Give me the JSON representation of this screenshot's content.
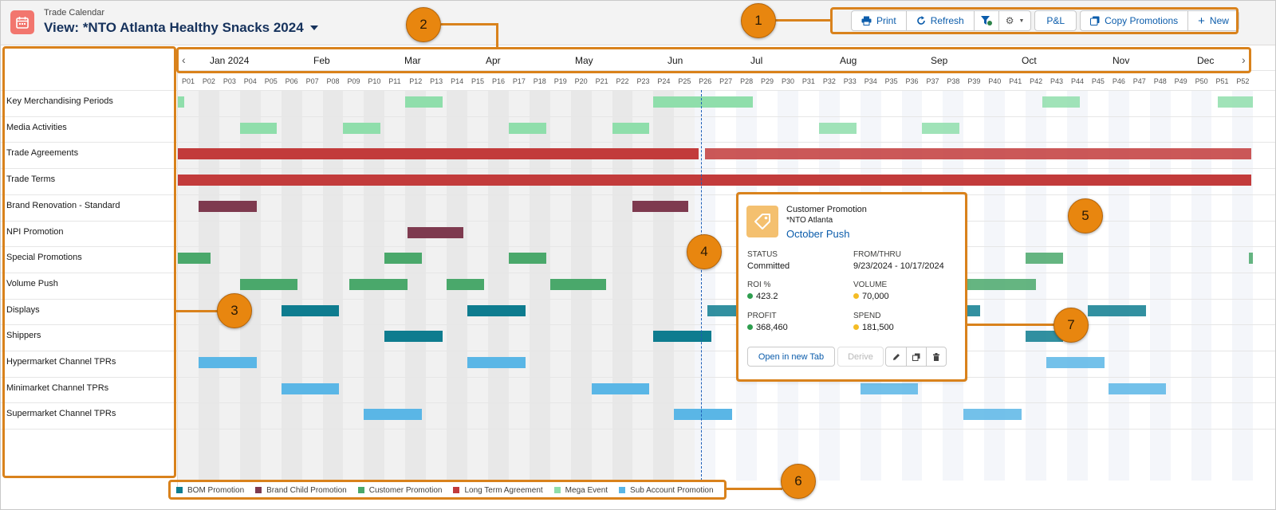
{
  "header": {
    "app_title": "Trade Calendar",
    "view_title": "View: *NTO Atlanta Healthy Snacks 2024",
    "icon": "calendar-icon"
  },
  "toolbar": {
    "print": "Print",
    "refresh": "Refresh",
    "pl": "P&L",
    "copy_promotions": "Copy Promotions",
    "new": "New"
  },
  "timeline": {
    "months": [
      "Jan 2024",
      "Feb",
      "Mar",
      "Apr",
      "May",
      "Jun",
      "Jul",
      "Aug",
      "Sep",
      "Oct",
      "Nov",
      "Dec"
    ],
    "periods": [
      "P01",
      "P02",
      "P03",
      "P04",
      "P05",
      "P06",
      "P07",
      "P08",
      "P09",
      "P10",
      "P11",
      "P12",
      "P13",
      "P14",
      "P15",
      "P16",
      "P17",
      "P18",
      "P19",
      "P20",
      "P21",
      "P22",
      "P23",
      "P24",
      "P25",
      "P26",
      "P27",
      "P28",
      "P29",
      "P30",
      "P31",
      "P32",
      "P33",
      "P34",
      "P35",
      "P36",
      "P37",
      "P38",
      "P39",
      "P40",
      "P41",
      "P42",
      "P43",
      "P44",
      "P45",
      "P46",
      "P47",
      "P48",
      "P49",
      "P50",
      "P51",
      "P52"
    ]
  },
  "rows": [
    "Key Merchandising Periods",
    "Media Activities",
    "Trade Agreements",
    "Trade Terms",
    "Brand Renovation - Standard",
    "NPI Promotion",
    "Special Promotions",
    "Volume Push",
    "Displays",
    "Shippers",
    "Hypermarket Channel TPRs",
    "Minimarket Channel TPRs",
    "Supermarket Channel TPRs"
  ],
  "colors": {
    "bom": "#0e7c8f",
    "brand_child": "#7e3a4f",
    "customer": "#4aa86b",
    "long_term": "#c23b3b",
    "mega_event": "#8fdeab",
    "sub_account": "#5ab6e6",
    "annotation": "#e8860f",
    "link": "#0b5cab"
  },
  "popup": {
    "type": "Customer Promotion",
    "account": "*NTO Atlanta",
    "name": "October Push",
    "status_label": "STATUS",
    "status_value": "Committed",
    "fromthru_label": "FROM/THRU",
    "fromthru_value": "9/23/2024 - 10/17/2024",
    "roi_label": "ROI %",
    "roi_value": "423.2",
    "volume_label": "VOLUME",
    "volume_value": "70,000",
    "profit_label": "PROFIT",
    "profit_value": "368,460",
    "spend_label": "SPEND",
    "spend_value": "181,500",
    "open_tab": "Open in new Tab",
    "derive": "Derive"
  },
  "legend": [
    {
      "label": "BOM Promotion",
      "color": "#0e7c8f"
    },
    {
      "label": "Brand Child Promotion",
      "color": "#7e3a4f"
    },
    {
      "label": "Customer Promotion",
      "color": "#4aa86b"
    },
    {
      "label": "Long Term Agreement",
      "color": "#c23b3b"
    },
    {
      "label": "Mega Event",
      "color": "#8fdeab"
    },
    {
      "label": "Sub Account Promotion",
      "color": "#5ab6e6"
    }
  ],
  "callouts": [
    "1",
    "2",
    "3",
    "4",
    "5",
    "6",
    "7"
  ]
}
